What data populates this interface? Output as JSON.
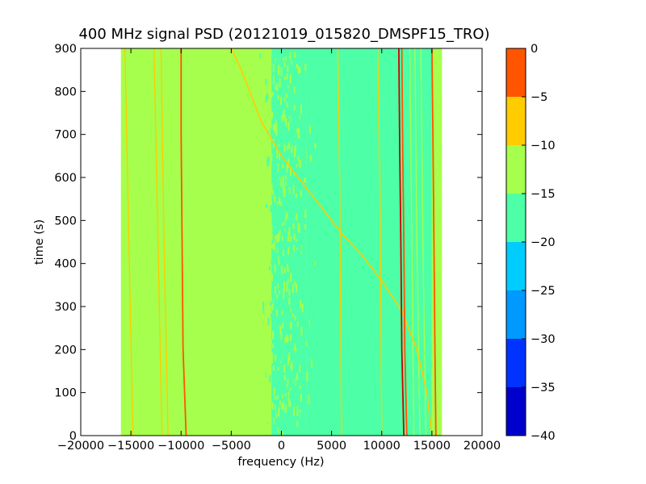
{
  "chart_data": {
    "type": "heatmap",
    "title": "400 MHz signal PSD (20121019_015820_DMSPF15_TRO)",
    "xlabel": "frequency (Hz)",
    "ylabel": "time (s)",
    "xlim": [
      -20000,
      20000
    ],
    "ylim": [
      0,
      900
    ],
    "xticks": [
      -20000,
      -15000,
      -10000,
      -5000,
      0,
      5000,
      10000,
      15000,
      20000
    ],
    "xtick_labels": [
      "−20000",
      "−15000",
      "−10000",
      "−5000",
      "0",
      "5000",
      "10000",
      "15000",
      "20000"
    ],
    "yticks": [
      0,
      100,
      200,
      300,
      400,
      500,
      600,
      700,
      800,
      900
    ],
    "ytick_labels": [
      "0",
      "100",
      "200",
      "300",
      "400",
      "500",
      "600",
      "700",
      "800",
      "900"
    ],
    "data_extent": {
      "freq": [
        -16000,
        16000
      ],
      "time": [
        0,
        900
      ]
    },
    "colorbar": {
      "levels": [
        -40,
        -35,
        -30,
        -25,
        -20,
        -15,
        -10,
        -5,
        0
      ],
      "tick_labels": [
        "−40",
        "−35",
        "−30",
        "−25",
        "−20",
        "−15",
        "−10",
        "−5",
        "0"
      ],
      "colors": [
        "#0000cc",
        "#0033ff",
        "#0099ff",
        "#00ccff",
        "#4dffa6",
        "#a6ff4d",
        "#ffcc00",
        "#ff5500",
        "#cc0000"
      ]
    },
    "regions": [
      {
        "freq_start": -16000,
        "freq_end": -1000,
        "level_band": [
          -20,
          -15
        ],
        "color": "#a6ff4d"
      },
      {
        "freq_start": -1000,
        "freq_end": 2500,
        "level_band": [
          -25,
          -20
        ],
        "color": "#4dffa6",
        "note": "mixed speckle"
      },
      {
        "freq_start": 2500,
        "freq_end": 15000,
        "level_band": [
          -25,
          -20
        ],
        "color": "#4dffa6"
      },
      {
        "freq_start": 15000,
        "freq_end": 16000,
        "level_band": [
          -20,
          -15
        ],
        "color": "#a6ff4d"
      }
    ],
    "strong_lines": [
      {
        "points": [
          [
            -9500,
            0
          ],
          [
            -9800,
            200
          ],
          [
            -9900,
            450
          ],
          [
            -10000,
            700
          ],
          [
            -10000,
            900
          ]
        ],
        "color": "#ff5500"
      },
      {
        "points": [
          [
            12200,
            0
          ],
          [
            12000,
            200
          ],
          [
            11900,
            450
          ],
          [
            11800,
            650
          ],
          [
            11700,
            900
          ]
        ],
        "color": "#cc0000"
      },
      {
        "points": [
          [
            12500,
            0
          ],
          [
            12300,
            200
          ],
          [
            12200,
            450
          ],
          [
            12100,
            650
          ],
          [
            12000,
            900
          ]
        ],
        "color": "#ff5500"
      },
      {
        "points": [
          [
            15400,
            0
          ],
          [
            15300,
            200
          ],
          [
            15200,
            450
          ],
          [
            15100,
            700
          ],
          [
            15000,
            900
          ]
        ],
        "color": "#ff5500"
      }
    ],
    "weak_lines": [
      {
        "points": [
          [
            -14800,
            0
          ],
          [
            -15200,
            450
          ],
          [
            -15600,
            900
          ]
        ],
        "color": "#ffcc00"
      },
      {
        "points": [
          [
            -11900,
            0
          ],
          [
            -12300,
            450
          ],
          [
            -12700,
            900
          ]
        ],
        "color": "#ffcc00"
      },
      {
        "points": [
          [
            -11300,
            0
          ],
          [
            -11700,
            450
          ],
          [
            -12000,
            900
          ]
        ],
        "color": "#ffcc00"
      },
      {
        "points": [
          [
            6000,
            0
          ],
          [
            5900,
            300
          ],
          [
            5800,
            600
          ],
          [
            5600,
            900
          ]
        ],
        "color": "#ffcc00"
      },
      {
        "points": [
          [
            10000,
            0
          ],
          [
            9900,
            300
          ],
          [
            9800,
            600
          ],
          [
            9600,
            900
          ]
        ],
        "color": "#ffcc00"
      },
      {
        "points": [
          [
            13200,
            0
          ],
          [
            13000,
            450
          ],
          [
            12800,
            900
          ]
        ],
        "color": "#a6ff4d"
      },
      {
        "points": [
          [
            13800,
            0
          ],
          [
            13500,
            450
          ],
          [
            13300,
            900
          ]
        ],
        "color": "#a6ff4d"
      },
      {
        "points": [
          [
            14400,
            0
          ],
          [
            14100,
            450
          ],
          [
            13900,
            900
          ]
        ],
        "color": "#a6ff4d"
      }
    ],
    "sweep_line": {
      "points": [
        [
          -5000,
          900
        ],
        [
          -4000,
          850
        ],
        [
          -2000,
          730
        ],
        [
          0,
          650
        ],
        [
          2000,
          590
        ],
        [
          4000,
          530
        ],
        [
          6000,
          470
        ],
        [
          8000,
          420
        ],
        [
          10000,
          360
        ],
        [
          12000,
          290
        ],
        [
          13500,
          200
        ],
        [
          14500,
          100
        ],
        [
          15000,
          0
        ]
      ],
      "color": "#ffcc00"
    }
  }
}
